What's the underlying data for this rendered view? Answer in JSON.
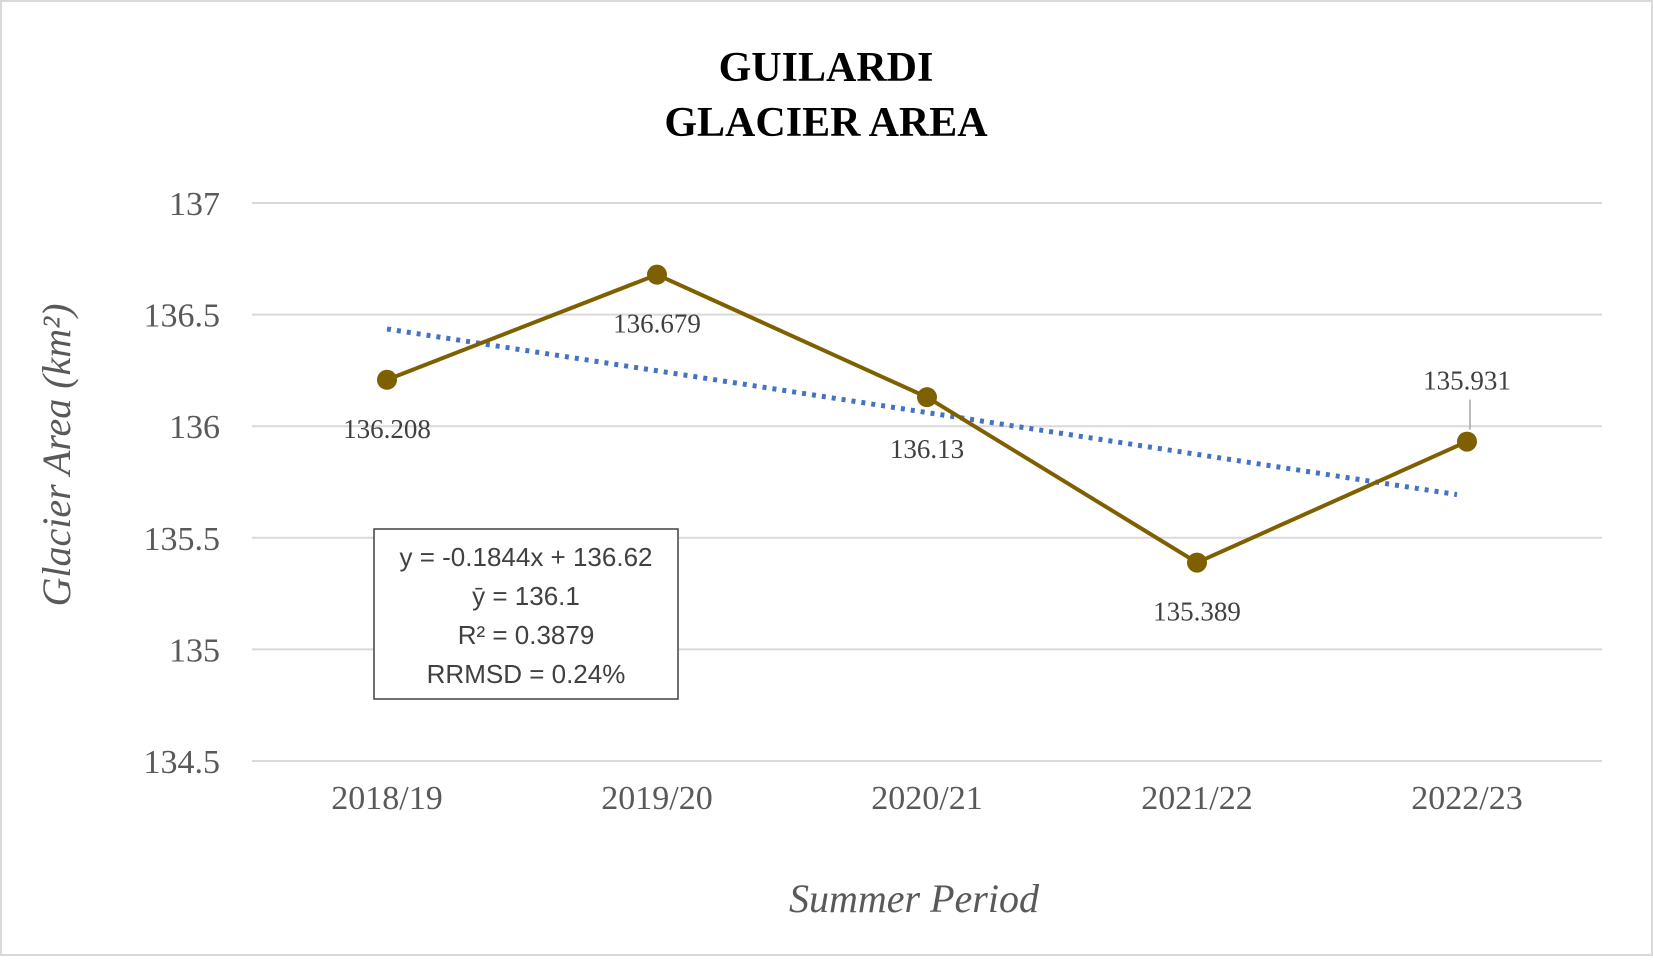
{
  "chart_data": {
    "type": "line",
    "title": "GUILARDI",
    "subtitle": "GLACIER AREA",
    "xlabel": "Summer Period",
    "ylabel": "Glacier Area (km²)",
    "categories": [
      "2018/19",
      "2019/20",
      "2020/21",
      "2021/22",
      "2022/23"
    ],
    "series": [
      {
        "values": [
          136.208,
          136.679,
          136.13,
          135.389,
          135.931
        ],
        "data_labels": [
          "136.208",
          "136.679",
          "136.13",
          "135.389",
          "135.931"
        ],
        "color": "#7F6000"
      }
    ],
    "trendline": {
      "type": "linear",
      "slope": -0.1844,
      "intercept": 136.62,
      "style": "dotted",
      "color": "#4472C4"
    },
    "ylim": [
      134.5,
      137
    ],
    "yticks": [
      134.5,
      135,
      135.5,
      136,
      136.5,
      137
    ],
    "ytick_labels": [
      "134.5",
      "135",
      "135.5",
      "136",
      "136.5",
      "137"
    ],
    "grid": true,
    "legend": "none",
    "annotation": {
      "lines": [
        "y = -0.1844x + 136.62",
        "ȳ = 136.1",
        "R² = 0.3879",
        "RRMSD = 0.24%"
      ]
    }
  }
}
